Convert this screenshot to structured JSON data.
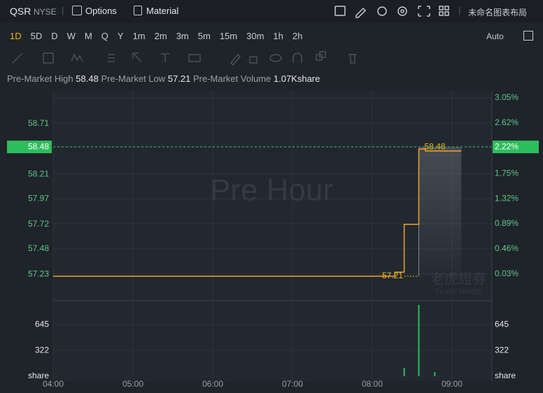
{
  "header": {
    "symbol": "QSR",
    "exchange": "NYSE",
    "options": "Options",
    "material": "Material",
    "layout": "未命名图表布局"
  },
  "timeframes": [
    "1D",
    "5D",
    "D",
    "W",
    "M",
    "Q",
    "Y",
    "1m",
    "2m",
    "3m",
    "5m",
    "15m",
    "30m",
    "1h",
    "2h"
  ],
  "auto": "Auto",
  "stats": {
    "high_label": "Pre-Market High",
    "high": 58.48,
    "low_label": "Pre-Market Low",
    "low": 57.21,
    "volume_label": "Pre-Market Volume",
    "volume": "1.07Kshare"
  },
  "chart_data": [
    {
      "type": "line",
      "watermark": "Pre Hour",
      "brand": "老虎證券",
      "brand_en": "TIGER TRADE",
      "x": [
        "04:00",
        "08:17",
        "08:17",
        "08:24",
        "08:24",
        "08:35",
        "08:35",
        "08:40",
        "08:40",
        "09:07"
      ],
      "values": [
        57.21,
        57.21,
        57.25,
        57.25,
        57.72,
        57.72,
        58.46,
        58.46,
        58.44,
        58.44
      ],
      "color": "#f0a030",
      "xlim": [
        "04:00",
        "09:30"
      ],
      "xticks": [
        "04:00",
        "05:00",
        "06:00",
        "07:00",
        "08:00",
        "09:00"
      ],
      "ylim": [
        56.97,
        59.03
      ],
      "yticks": [
        57.23,
        57.48,
        57.72,
        57.97,
        58.21,
        58.71
      ],
      "y2lim": [
        -0.43,
        3.17
      ],
      "y2ticks": [
        {
          "value": 0.03,
          "label": "0.03%"
        },
        {
          "value": 0.46,
          "label": "0.46%"
        },
        {
          "value": 0.89,
          "label": "0.89%"
        },
        {
          "value": 1.32,
          "label": "1.32%"
        },
        {
          "value": 1.75,
          "label": "1.75%"
        },
        {
          "value": 2.22,
          "label": "2.22%"
        },
        {
          "value": 2.62,
          "label": "2.62%"
        },
        {
          "value": 3.05,
          "label": "3.05%"
        }
      ],
      "current": 58.48,
      "current_pct": {
        "value": 2.22,
        "label": "2.22%"
      },
      "low_marker": 57.21,
      "high_marker": 58.48,
      "grid": true
    },
    {
      "type": "bar",
      "x": [
        "08:24",
        "08:35",
        "08:47"
      ],
      "values": [
        105,
        890,
        50
      ],
      "color": "#2ebd5b",
      "ylim": [
        0,
        925
      ],
      "yticks": [
        322,
        645
      ],
      "unit": "share"
    }
  ]
}
